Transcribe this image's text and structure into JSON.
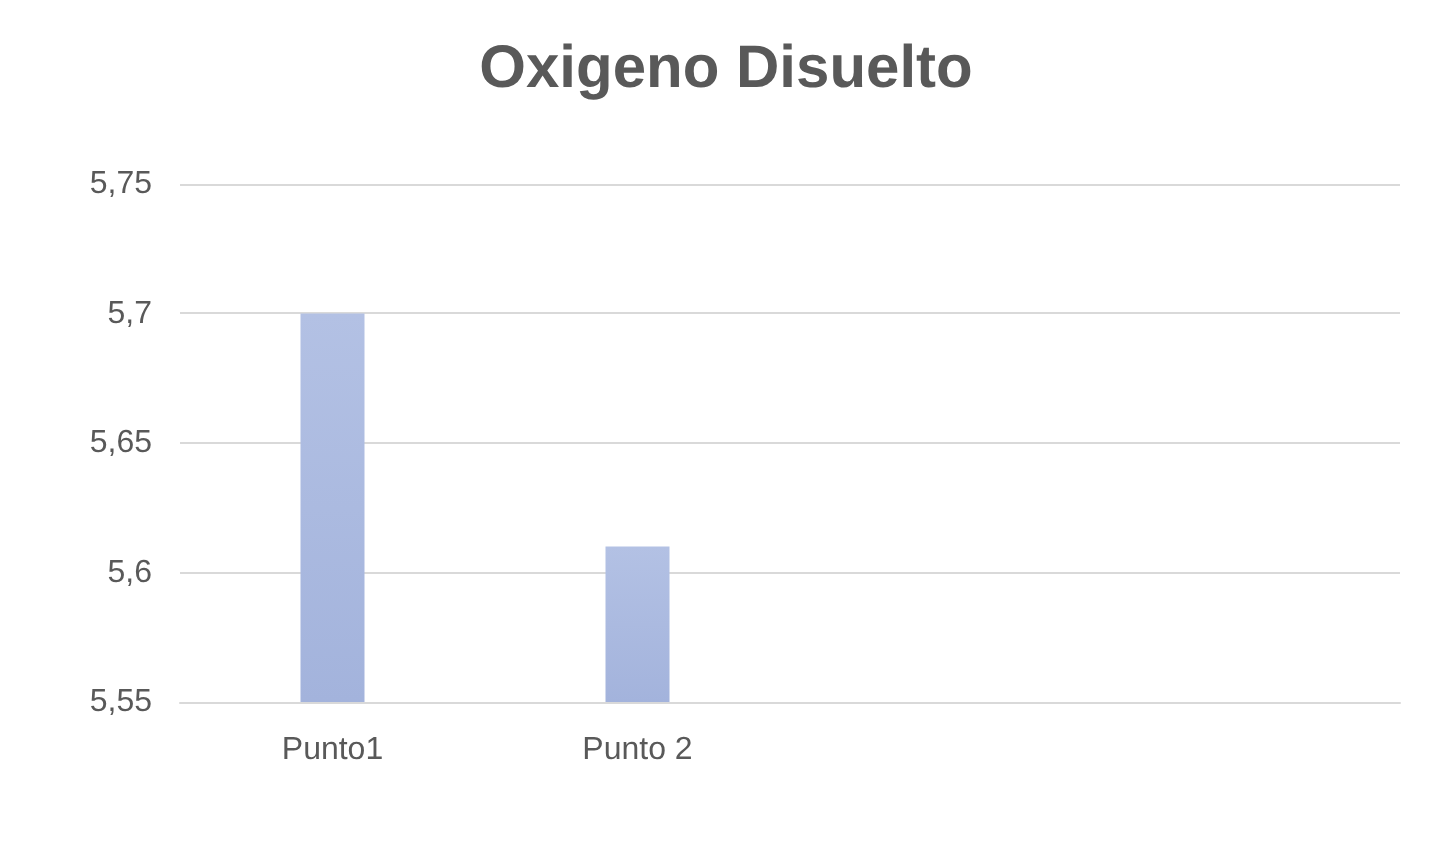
{
  "chart_data": {
    "type": "bar",
    "title": "Oxigeno Disuelto",
    "categories": [
      "Punto1",
      "Punto 2",
      null,
      null
    ],
    "values": [
      5.7,
      5.61,
      null,
      null
    ],
    "color": "#a3b3dc",
    "ylim": [
      5.55,
      5.75
    ],
    "yticks": [
      {
        "value": 5.55,
        "label": "5,55"
      },
      {
        "value": 5.6,
        "label": "5,6"
      },
      {
        "value": 5.65,
        "label": "5,65"
      },
      {
        "value": 5.7,
        "label": "5,7"
      },
      {
        "value": 5.75,
        "label": "5,75"
      }
    ],
    "grid": "y"
  }
}
